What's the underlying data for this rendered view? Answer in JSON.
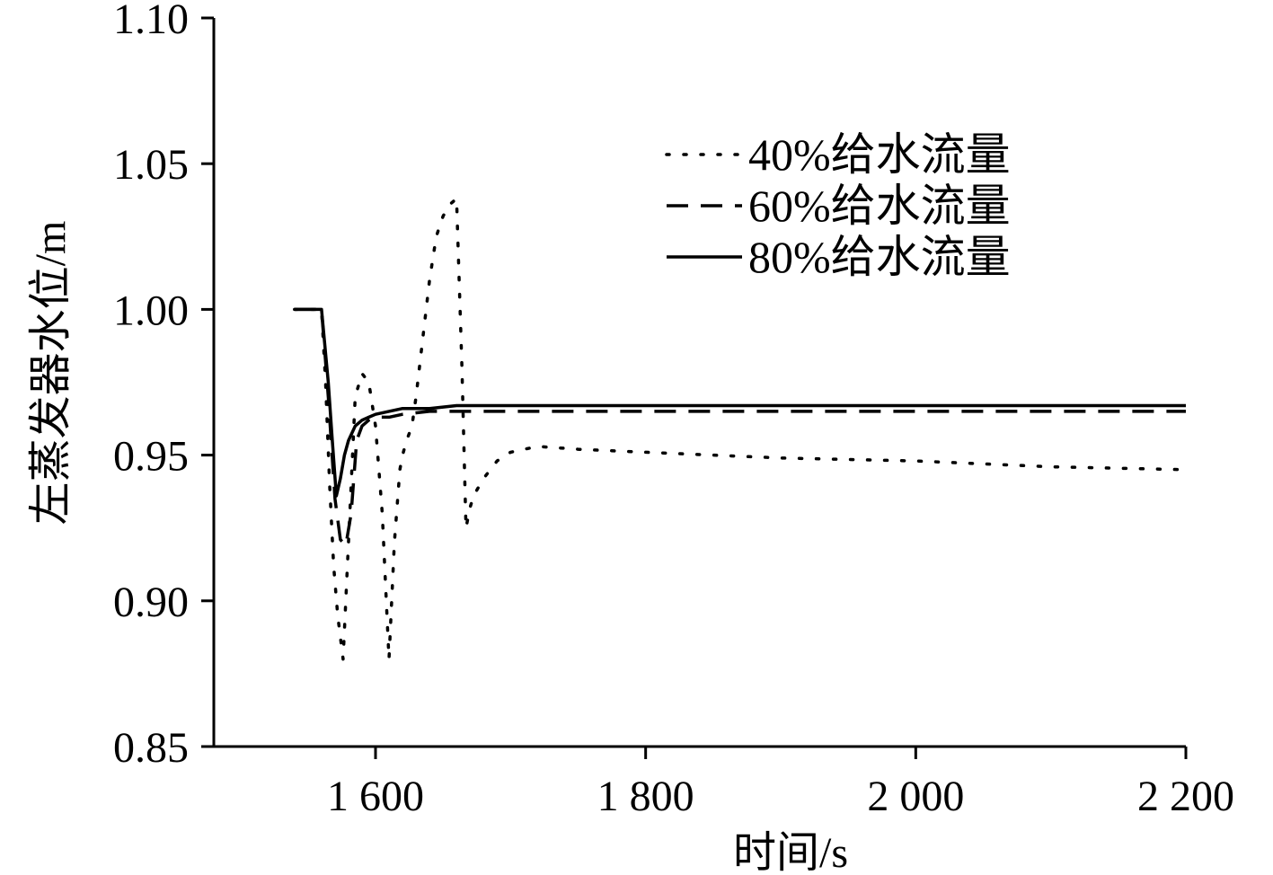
{
  "chart_data": {
    "type": "line",
    "xlabel": "时间/s",
    "ylabel": "左蒸发器水位/m",
    "xlim": [
      1540,
      2200
    ],
    "ylim": [
      0.85,
      1.1
    ],
    "xticks": [
      1600,
      1800,
      2000,
      2200
    ],
    "xtick_labels": [
      "1 600",
      "1 800",
      "2 000",
      "2 200"
    ],
    "yticks": [
      0.85,
      0.9,
      0.95,
      1.0,
      1.05,
      1.1
    ],
    "ytick_labels": [
      "0.85",
      "0.90",
      "0.95",
      "1.00",
      "1.05",
      "1.10"
    ],
    "legend_position": "upper-right",
    "grid": false,
    "series": [
      {
        "name": "40%给水流量",
        "style": "dotted",
        "color": "#000000",
        "x": [
          1540,
          1560,
          1563,
          1566,
          1569,
          1572,
          1576,
          1580,
          1585,
          1590,
          1595,
          1600,
          1605,
          1610,
          1614,
          1618,
          1620,
          1623,
          1627,
          1630,
          1635,
          1640,
          1645,
          1650,
          1655,
          1660,
          1664,
          1667,
          1670,
          1672,
          1675,
          1680,
          1690,
          1700,
          1720,
          1750,
          1800,
          1900,
          2000,
          2100,
          2200
        ],
        "y": [
          1.0,
          1.0,
          0.975,
          0.94,
          0.912,
          0.895,
          0.88,
          0.92,
          0.97,
          0.978,
          0.975,
          0.96,
          0.93,
          0.88,
          0.92,
          0.945,
          0.95,
          0.955,
          0.96,
          0.97,
          0.99,
          1.01,
          1.025,
          1.032,
          1.036,
          1.038,
          0.98,
          0.925,
          0.932,
          0.935,
          0.938,
          0.942,
          0.948,
          0.951,
          0.953,
          0.952,
          0.951,
          0.949,
          0.948,
          0.946,
          0.945
        ]
      },
      {
        "name": "60%给水流量",
        "style": "dashed",
        "color": "#000000",
        "x": [
          1540,
          1560,
          1565,
          1570,
          1574,
          1578,
          1582,
          1586,
          1590,
          1595,
          1600,
          1610,
          1620,
          1640,
          1660,
          1700,
          1800,
          1900,
          2000,
          2100,
          2200
        ],
        "y": [
          1.0,
          1.0,
          0.97,
          0.935,
          0.921,
          0.919,
          0.93,
          0.955,
          0.96,
          0.962,
          0.963,
          0.963,
          0.964,
          0.965,
          0.965,
          0.965,
          0.965,
          0.965,
          0.965,
          0.965,
          0.965
        ]
      },
      {
        "name": "80%给水流量",
        "style": "solid",
        "color": "#000000",
        "x": [
          1540,
          1560,
          1565,
          1568,
          1571,
          1574,
          1577,
          1580,
          1585,
          1590,
          1595,
          1600,
          1610,
          1620,
          1640,
          1660,
          1700,
          1800,
          1900,
          2000,
          2100,
          2200
        ],
        "y": [
          1.0,
          1.0,
          0.975,
          0.955,
          0.936,
          0.942,
          0.95,
          0.955,
          0.96,
          0.962,
          0.963,
          0.964,
          0.965,
          0.966,
          0.966,
          0.967,
          0.967,
          0.967,
          0.967,
          0.967,
          0.967,
          0.967
        ]
      }
    ]
  }
}
